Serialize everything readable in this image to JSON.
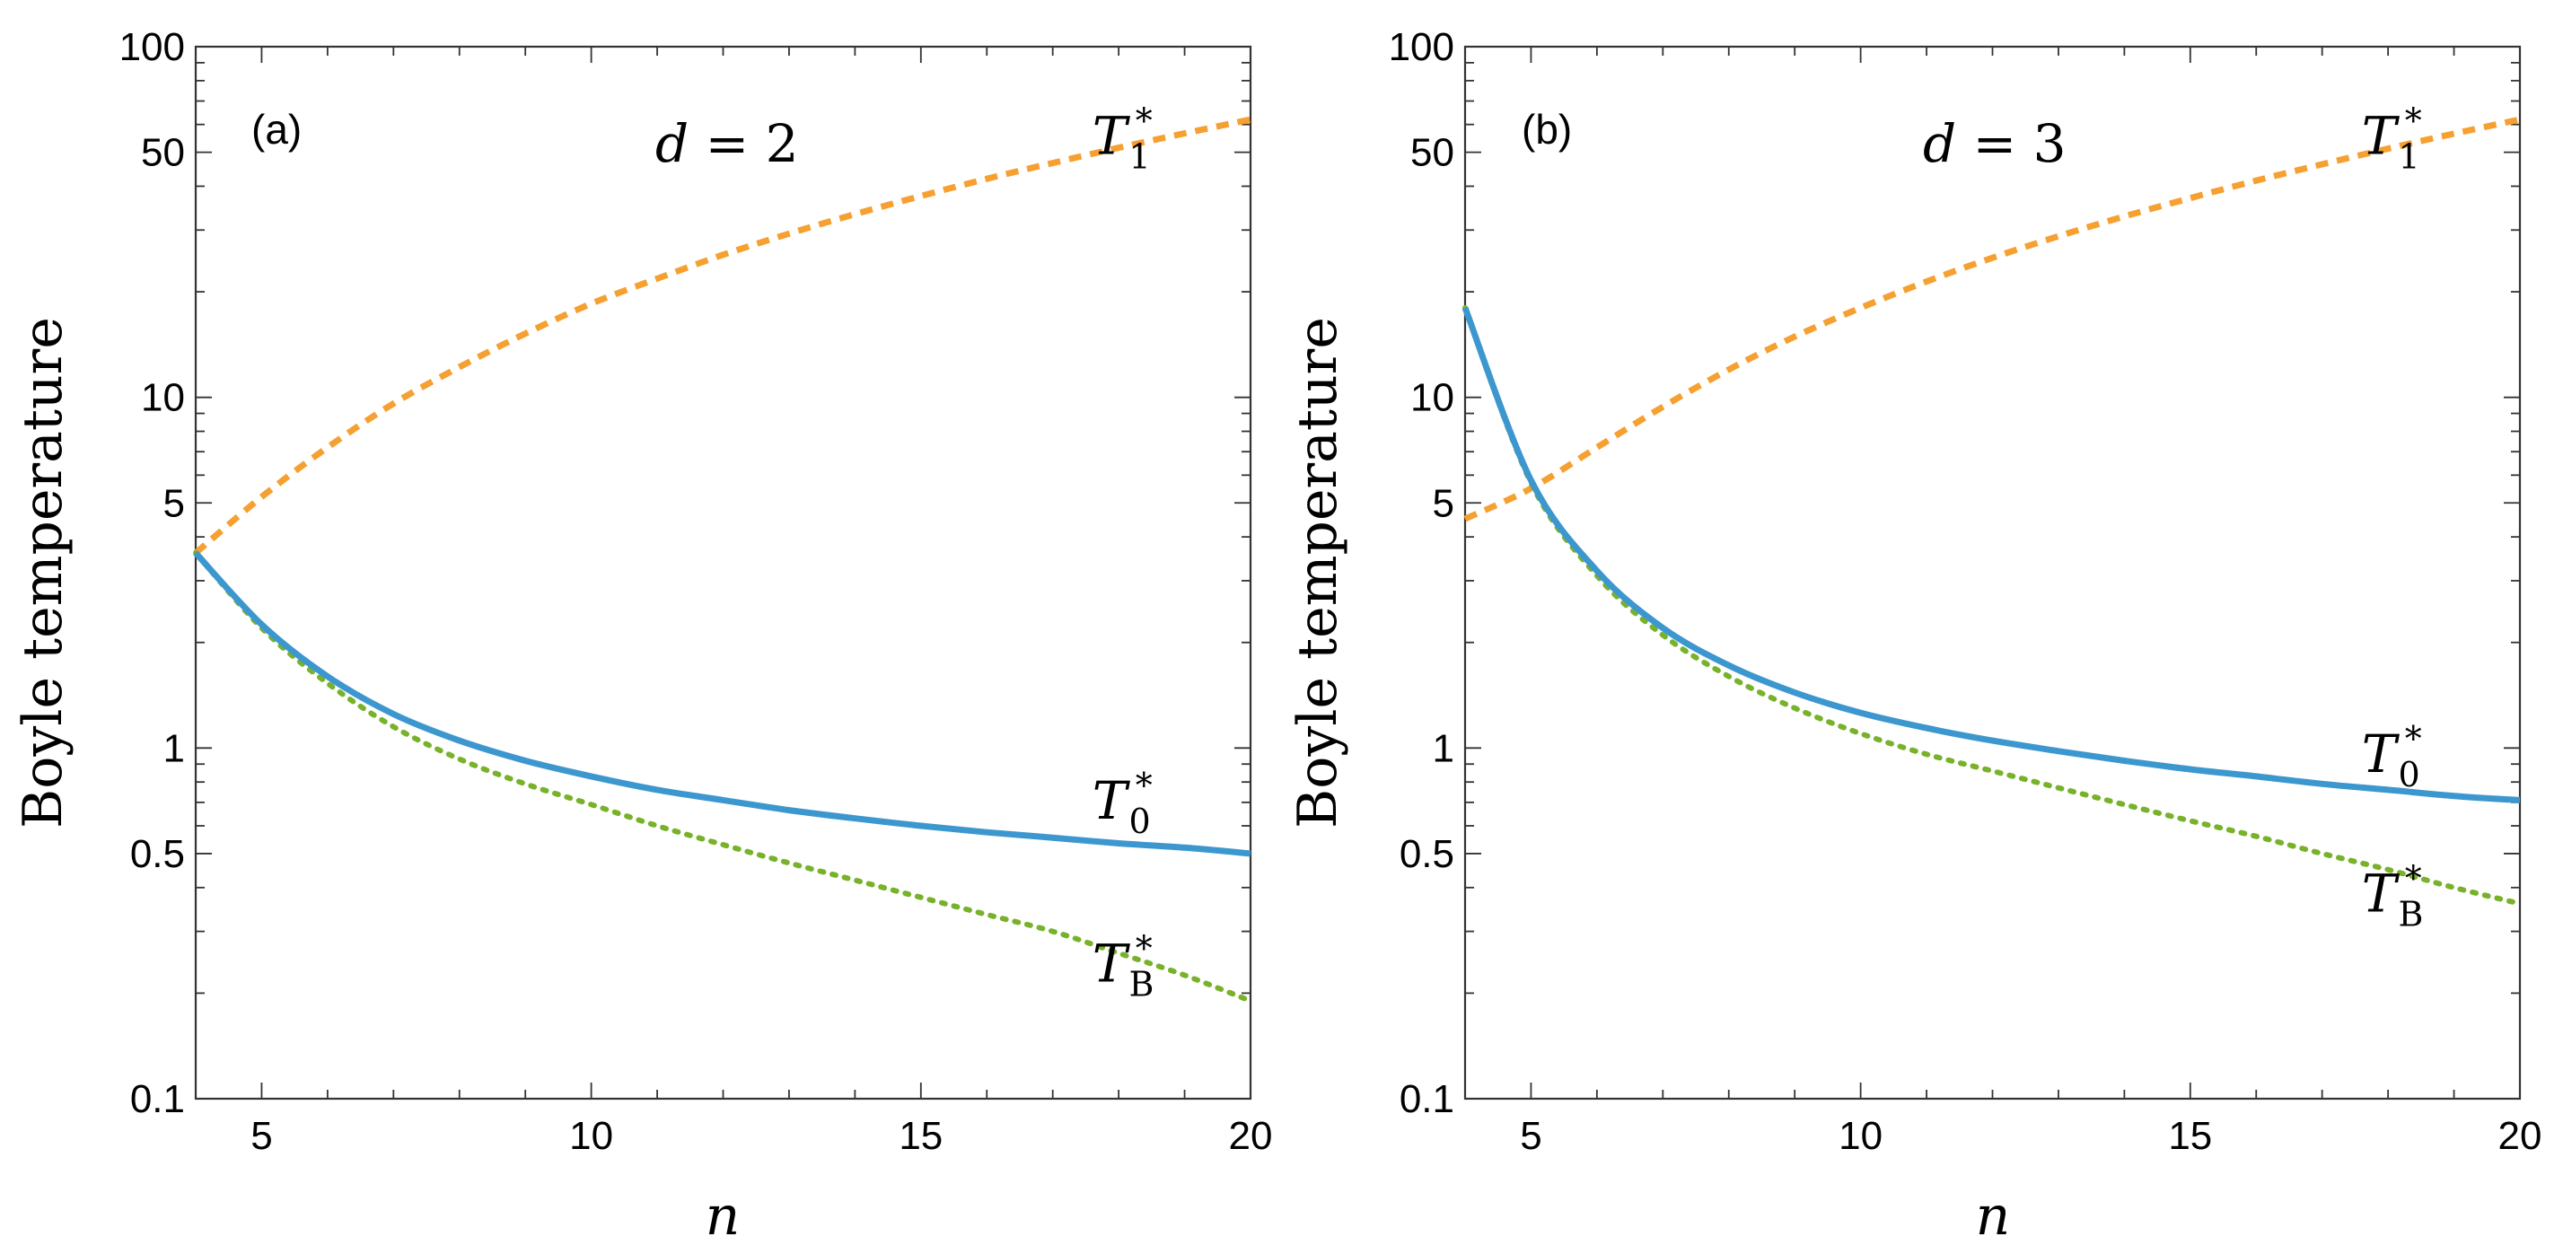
{
  "chart_data": [
    {
      "type": "line",
      "panel_tag": "(a)",
      "param_symbol": "d",
      "param_value": "2",
      "xlabel": "n",
      "ylabel": "Boyle temperature",
      "xlim": [
        4,
        20
      ],
      "ylim": [
        0.1,
        100
      ],
      "yscale": "log",
      "xticks": [
        5,
        10,
        15,
        20
      ],
      "xtick_labels": [
        "5",
        "10",
        "15",
        "20"
      ],
      "yticks": [
        0.1,
        0.5,
        1,
        5,
        10,
        50,
        100
      ],
      "ytick_labels": [
        "0.1",
        "0.5",
        "1",
        "5",
        "10",
        "50",
        "100"
      ],
      "series": [
        {
          "name": "T1*",
          "symbol": "T",
          "sub": "1",
          "sup": "*",
          "label_at": [
            17.6,
            55
          ],
          "style": "dashed",
          "x": [
            4,
            5,
            6,
            7,
            8,
            9,
            10,
            11,
            12,
            13,
            14,
            15,
            16,
            17,
            18,
            19,
            20
          ],
          "y": [
            3.6,
            5.2,
            7.2,
            9.6,
            12.2,
            15.2,
            18.5,
            21.8,
            25.5,
            29.3,
            33.3,
            37.5,
            42,
            46.6,
            51.5,
            56.6,
            62
          ]
        },
        {
          "name": "T0*",
          "symbol": "T",
          "sub": "0",
          "sup": "*",
          "label_at": [
            17.6,
            0.7
          ],
          "style": "solid",
          "x": [
            4,
            5,
            6,
            7,
            8,
            9,
            10,
            11,
            12,
            13,
            14,
            15,
            16,
            17,
            18,
            19,
            20
          ],
          "y": [
            3.6,
            2.25,
            1.6,
            1.25,
            1.05,
            0.92,
            0.83,
            0.76,
            0.71,
            0.665,
            0.63,
            0.6,
            0.575,
            0.555,
            0.535,
            0.52,
            0.5
          ]
        },
        {
          "name": "TB*",
          "symbol": "T",
          "sub": "B",
          "sup": "*",
          "label_at": [
            17.6,
            0.24
          ],
          "style": "dotted",
          "x": [
            4,
            5,
            6,
            7,
            8,
            9,
            10,
            11,
            12,
            13,
            14,
            15,
            16,
            17,
            18,
            19,
            20
          ],
          "y": [
            3.6,
            2.2,
            1.53,
            1.15,
            0.93,
            0.79,
            0.69,
            0.6,
            0.53,
            0.47,
            0.42,
            0.375,
            0.335,
            0.3,
            0.26,
            0.225,
            0.19
          ]
        }
      ]
    },
    {
      "type": "line",
      "panel_tag": "(b)",
      "param_symbol": "d",
      "param_value": "3",
      "xlabel": "n",
      "ylabel": "Boyle temperature",
      "xlim": [
        4,
        20
      ],
      "ylim": [
        0.1,
        100
      ],
      "yscale": "log",
      "xticks": [
        5,
        10,
        15,
        20
      ],
      "xtick_labels": [
        "5",
        "10",
        "15",
        "20"
      ],
      "yticks": [
        0.1,
        0.5,
        1,
        5,
        10,
        50,
        100
      ],
      "ytick_labels": [
        "0.1",
        "0.5",
        "1",
        "5",
        "10",
        "50",
        "100"
      ],
      "series": [
        {
          "name": "T1*",
          "symbol": "T",
          "sub": "1",
          "sup": "*",
          "label_at": [
            17.6,
            55
          ],
          "style": "dashed",
          "x": [
            4,
            5,
            6,
            7,
            8,
            9,
            10,
            11,
            12,
            13,
            14,
            15,
            16,
            17,
            18,
            19,
            20
          ],
          "y": [
            4.5,
            5.5,
            7.2,
            9.4,
            12,
            14.9,
            18,
            21.4,
            25,
            28.8,
            32.8,
            37,
            41.5,
            46.2,
            51.2,
            56.5,
            62
          ]
        },
        {
          "name": "T0*",
          "symbol": "T",
          "sub": "0",
          "sup": "*",
          "label_at": [
            17.6,
            0.95
          ],
          "style": "solid",
          "x": [
            4,
            5,
            6,
            7,
            8,
            9,
            10,
            11,
            12,
            13,
            14,
            15,
            16,
            17,
            18,
            19,
            20
          ],
          "y": [
            18,
            5.8,
            3.2,
            2.2,
            1.72,
            1.44,
            1.26,
            1.14,
            1.05,
            0.98,
            0.92,
            0.87,
            0.83,
            0.79,
            0.76,
            0.73,
            0.71
          ]
        },
        {
          "name": "TB*",
          "symbol": "T",
          "sub": "B",
          "sup": "*",
          "label_at": [
            17.6,
            0.38
          ],
          "style": "dotted",
          "x": [
            4,
            5,
            6,
            7,
            8,
            9,
            10,
            11,
            12,
            13,
            14,
            15,
            16,
            17,
            18,
            19,
            20
          ],
          "y": [
            18,
            5.7,
            3.1,
            2.1,
            1.6,
            1.3,
            1.1,
            0.96,
            0.86,
            0.77,
            0.69,
            0.62,
            0.56,
            0.5,
            0.45,
            0.4,
            0.36
          ]
        }
      ]
    }
  ]
}
